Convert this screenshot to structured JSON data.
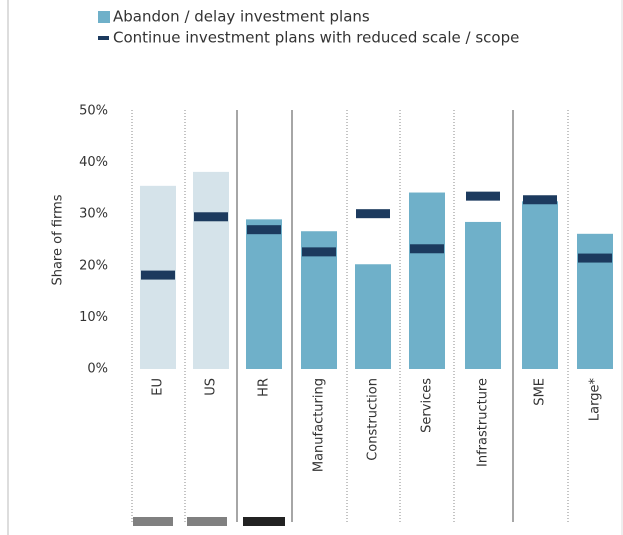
{
  "chart_data": {
    "type": "bar",
    "y_label": "Share of firms",
    "categories": [
      "EU",
      "US",
      "HR",
      "Manufacturing",
      "Construction",
      "Services",
      "Infrastructure",
      "SME",
      "Large*"
    ],
    "series": [
      {
        "name": "Abandon / delay investment plans",
        "kind": "bar",
        "colors": [
          "#d5e3ea",
          "#d5e3ea",
          "#6fb0c9",
          "#6fb0c9",
          "#6fb0c9",
          "#6fb0c9",
          "#6fb0c9",
          "#6fb0c9",
          "#6fb0c9"
        ],
        "values": [
          35.5,
          38.2,
          29,
          26.7,
          20.3,
          34.2,
          28.5,
          32.5,
          26.2
        ]
      },
      {
        "name": "Continue investment plans with reduced scale / scope",
        "kind": "marker",
        "color": "#1c3a5e",
        "values": [
          18.2,
          29.5,
          27,
          22.7,
          30.1,
          23.3,
          33.5,
          32.8,
          21.5
        ]
      }
    ],
    "ylim": [
      0,
      50
    ],
    "yticks": [
      {
        "value": 0,
        "label": "0%"
      },
      {
        "value": 10,
        "label": "10%"
      },
      {
        "value": 20,
        "label": "20%"
      },
      {
        "value": 30,
        "label": "30%"
      },
      {
        "value": 40,
        "label": "40%"
      },
      {
        "value": 50,
        "label": "50%"
      }
    ]
  }
}
